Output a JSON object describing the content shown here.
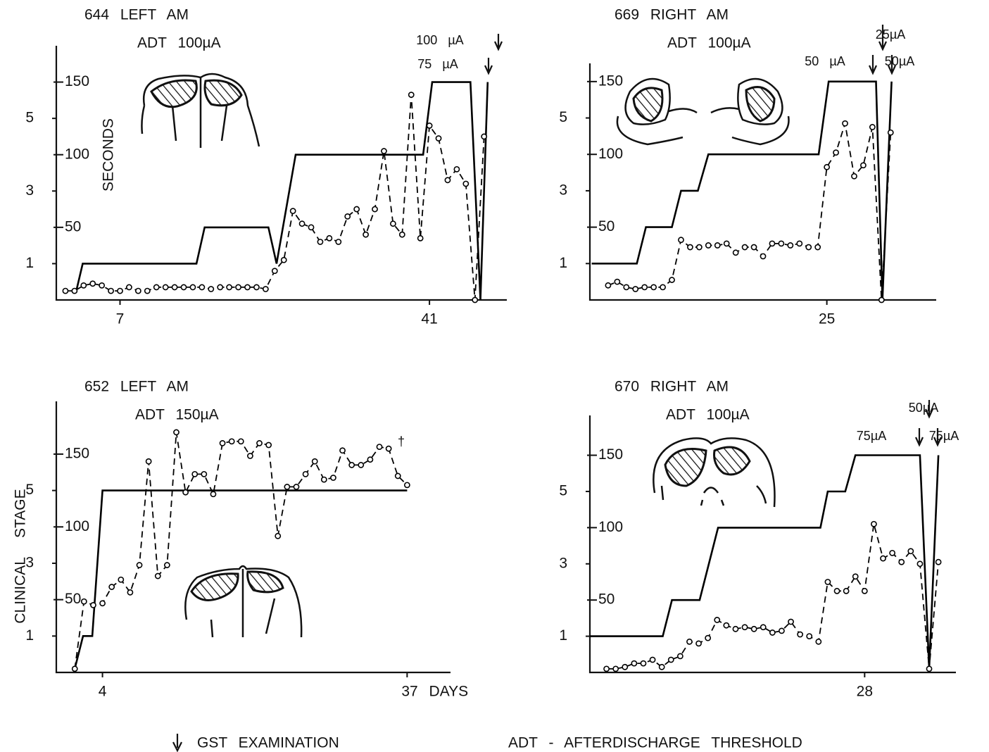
{
  "chart_data": [
    {
      "type": "line",
      "title": "644 LEFT AM",
      "subtitle": "ADT 100µA",
      "y2_label": "SECONDS",
      "annotations": [
        "100 µA",
        "75 µA"
      ],
      "xlim": [
        0,
        49.5
      ],
      "xticks": [
        7,
        41
      ],
      "ylim": [
        0,
        7
      ],
      "yticks": [
        1,
        3,
        5
      ],
      "y2lim": [
        0,
        175
      ],
      "y2ticks": [
        50,
        100,
        150
      ],
      "series": [
        {
          "color": "#000000",
          "line_style": "solid",
          "markers": false,
          "x": [
            2.2,
            2.9,
            15.4,
            16.3,
            23.3,
            24.2,
            26.3,
            40.3,
            41.3,
            45.5,
            46.6,
            47.4
          ],
          "values": [
            0.25,
            1,
            1,
            2,
            2,
            1,
            4,
            4,
            6,
            6,
            0,
            6
          ]
        },
        {
          "color": "#000000",
          "line_style": "dashed",
          "markers": true,
          "x": [
            1,
            2,
            3,
            4,
            5,
            6,
            7,
            8,
            9,
            10,
            11,
            12,
            13,
            14,
            15,
            16,
            17,
            18,
            19,
            20,
            21,
            22,
            23,
            24,
            25,
            26,
            27,
            28,
            29,
            30,
            31,
            32,
            33,
            34,
            35,
            36,
            37,
            38,
            39,
            40,
            41,
            42,
            43,
            44,
            45,
            46,
            47
          ],
          "values": [
            0.25,
            0.25,
            0.4,
            0.45,
            0.4,
            0.25,
            0.25,
            0.35,
            0.25,
            0.25,
            0.35,
            0.35,
            0.35,
            0.35,
            0.35,
            0.35,
            0.3,
            0.35,
            0.35,
            0.35,
            0.35,
            0.35,
            0.3,
            0.8,
            1.1,
            2.45,
            2.1,
            2.0,
            1.6,
            1.7,
            1.6,
            2.3,
            2.5,
            1.8,
            2.5,
            4.1,
            2.1,
            1.8,
            5.65,
            1.7,
            4.8,
            4.45,
            3.3,
            3.6,
            3.2,
            0,
            4.5
          ]
        }
      ]
    },
    {
      "type": "line",
      "title": "669 RIGHT AM",
      "subtitle": "ADT 100µA",
      "annotations": [
        "25µA",
        "50 µA",
        "50µA"
      ],
      "xlim": [
        -1,
        37
      ],
      "xticks": [
        25
      ],
      "ylim": [
        0,
        6.5
      ],
      "yticks": [
        1,
        3,
        5
      ],
      "y2lim": [
        0,
        162.5
      ],
      "y2ticks": [
        50,
        100,
        150
      ],
      "series": [
        {
          "color": "#000000",
          "line_style": "solid",
          "markers": false,
          "x": [
            -0.8,
            4.15,
            5.15,
            8.0,
            9.0,
            10.85,
            12.0,
            24.1,
            25.2,
            30.4,
            31.1,
            32.1
          ],
          "values": [
            1,
            1,
            2,
            2,
            3,
            3,
            4,
            4,
            6,
            6,
            0,
            6
          ]
        },
        {
          "color": "#000000",
          "line_style": "dashed",
          "markers": true,
          "x": [
            1,
            2,
            3,
            4,
            5,
            6,
            7,
            8,
            9,
            10,
            11,
            12,
            13,
            14,
            15,
            16,
            17,
            18,
            19,
            20,
            21,
            22,
            23,
            24,
            25,
            26,
            27,
            28,
            29,
            30,
            31,
            32
          ],
          "values": [
            0.4,
            0.5,
            0.35,
            0.3,
            0.35,
            0.35,
            0.35,
            0.55,
            1.65,
            1.45,
            1.45,
            1.5,
            1.5,
            1.55,
            1.3,
            1.45,
            1.45,
            1.2,
            1.55,
            1.55,
            1.5,
            1.55,
            1.45,
            1.45,
            3.65,
            4.05,
            4.85,
            3.4,
            3.7,
            4.75,
            0,
            4.6
          ]
        }
      ]
    },
    {
      "type": "line",
      "title": "652 LEFT AM",
      "subtitle": "ADT 150µA",
      "ylabel": "CLINICAL STAGE",
      "annotations": [
        "†"
      ],
      "xlim": [
        -1,
        41.7
      ],
      "xticks": [
        4,
        {
          "value": 37,
          "label": "37 DAYS"
        }
      ],
      "ylim": [
        0,
        7.45
      ],
      "yticks": [
        1,
        3,
        5
      ],
      "y2lim": [
        0,
        186.25
      ],
      "y2ticks": [
        50,
        100,
        150
      ],
      "series": [
        {
          "color": "#000000",
          "line_style": "solid",
          "markers": false,
          "x": [
            1,
            1.9,
            2.9,
            4,
            37
          ],
          "values": [
            0.1,
            1,
            1,
            5,
            5
          ]
        },
        {
          "color": "#000000",
          "line_style": "dashed",
          "markers": true,
          "x": [
            1,
            2,
            3,
            4,
            5,
            6,
            7,
            8,
            9,
            10,
            11,
            12,
            13,
            14,
            15,
            16,
            17,
            18,
            19,
            20,
            21,
            22,
            23,
            24,
            25,
            26,
            27,
            28,
            29,
            30,
            31,
            32,
            33,
            34,
            35,
            36,
            37
          ],
          "values": [
            0.1,
            1.95,
            1.85,
            1.9,
            2.35,
            2.55,
            2.2,
            2.95,
            5.8,
            2.65,
            2.95,
            6.6,
            4.95,
            5.45,
            5.45,
            4.9,
            6.3,
            6.35,
            6.35,
            5.95,
            6.3,
            6.25,
            3.75,
            5.1,
            5.1,
            5.45,
            5.8,
            5.3,
            5.35,
            6.1,
            5.7,
            5.7,
            5.85,
            6.2,
            6.15,
            5.4,
            5.15
          ]
        }
      ]
    },
    {
      "type": "line",
      "title": "670 RIGHT AM",
      "subtitle": "ADT 100µA",
      "annotations": [
        "50µA",
        "75µA",
        "75µA"
      ],
      "xlim": [
        -1.8,
        37.9
      ],
      "xticks": [
        28
      ],
      "ylim": [
        0,
        7.1
      ],
      "yticks": [
        1,
        3,
        5
      ],
      "y2lim": [
        0,
        177.5
      ],
      "y2ticks": [
        50,
        100,
        150
      ],
      "series": [
        {
          "color": "#000000",
          "line_style": "solid",
          "markers": false,
          "x": [
            -1.8,
            6.1,
            7.1,
            10.1,
            12.1,
            23.2,
            24.0,
            25.9,
            27.0,
            34.0,
            35.0,
            36.0
          ],
          "values": [
            1,
            1,
            2,
            2,
            4,
            4,
            5,
            5,
            6,
            6,
            0.1,
            6
          ]
        },
        {
          "color": "#000000",
          "line_style": "dashed",
          "markers": true,
          "x": [
            0,
            1,
            2,
            3,
            4,
            5,
            6,
            7,
            8,
            9,
            10,
            11,
            12,
            13,
            14,
            15,
            16,
            17,
            18,
            19,
            20,
            21,
            22,
            23,
            24,
            25,
            26,
            27,
            28,
            29,
            30,
            31,
            32,
            33,
            34,
            35,
            36
          ],
          "values": [
            0.1,
            0.1,
            0.15,
            0.25,
            0.25,
            0.35,
            0.15,
            0.35,
            0.45,
            0.85,
            0.8,
            0.95,
            1.45,
            1.3,
            1.2,
            1.25,
            1.2,
            1.25,
            1.1,
            1.15,
            1.4,
            1.05,
            1.0,
            0.85,
            2.5,
            2.25,
            2.25,
            2.65,
            2.25,
            4.1,
            3.15,
            3.3,
            3.05,
            3.35,
            3.0,
            0.1,
            3.05
          ]
        }
      ]
    }
  ],
  "notes": [
    "GST EXAMINATION",
    "ADT - AFTERDISCHARGE THRESHOLD"
  ]
}
